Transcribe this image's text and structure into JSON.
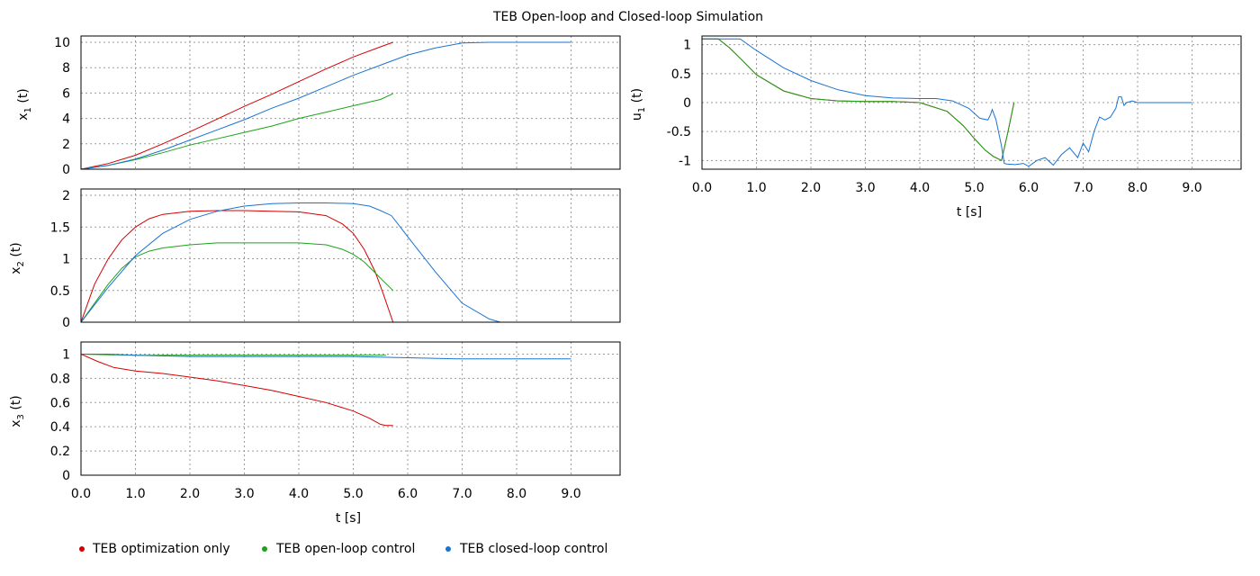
{
  "title": "TEB Open-loop and Closed-loop Simulation",
  "colors": {
    "teb_only": "#d40000",
    "open_loop": "#1aa31a",
    "closed_loop": "#1a73d4",
    "grid": "#9a9a9a"
  },
  "legend": [
    {
      "name": "TEB optimization only",
      "color_key": "teb_only"
    },
    {
      "name": "TEB open-loop control",
      "color_key": "open_loop"
    },
    {
      "name": "TEB closed-loop control",
      "color_key": "closed_loop"
    }
  ],
  "chart_data": [
    {
      "id": "x1",
      "type": "line",
      "ylabel": "x1 (t)",
      "ylabel_main": "x",
      "ylabel_sub": "1",
      "ylabel_tail": " (t)",
      "xlim": [
        0,
        9.9
      ],
      "ylim": [
        0,
        10.5
      ],
      "xticks": [
        0,
        1,
        2,
        3,
        4,
        5,
        6,
        7,
        8,
        9
      ],
      "xtick_labels": [
        "0.0",
        "1.0",
        "2.0",
        "3.0",
        "4.0",
        "5.0",
        "6.0",
        "7.0",
        "8.0",
        "9.0"
      ],
      "show_xtick_labels": false,
      "yticks": [
        0,
        2,
        4,
        6,
        8,
        10
      ],
      "ytick_labels": [
        "0",
        "2",
        "4",
        "6",
        "8",
        "10"
      ],
      "grid": true,
      "series": [
        {
          "name": "TEB optimization only",
          "color_key": "teb_only",
          "x": [
            0,
            0.5,
            1.0,
            1.5,
            2.0,
            2.5,
            3.0,
            3.5,
            4.0,
            4.5,
            5.0,
            5.5,
            5.73
          ],
          "y": [
            0,
            0.45,
            1.1,
            2.0,
            2.95,
            3.95,
            4.95,
            5.9,
            6.9,
            7.9,
            8.85,
            9.65,
            10.0
          ]
        },
        {
          "name": "TEB open-loop control",
          "color_key": "open_loop",
          "x": [
            0,
            0.5,
            1.0,
            1.5,
            2.0,
            2.5,
            3.0,
            3.5,
            4.0,
            4.5,
            5.0,
            5.5,
            5.73
          ],
          "y": [
            0,
            0.3,
            0.75,
            1.3,
            1.9,
            2.4,
            2.9,
            3.4,
            4.0,
            4.5,
            5.0,
            5.5,
            5.95
          ]
        },
        {
          "name": "TEB closed-loop control",
          "color_key": "closed_loop",
          "x": [
            0,
            0.5,
            1.0,
            1.5,
            2.0,
            2.5,
            3.0,
            3.5,
            4.0,
            4.5,
            5.0,
            5.5,
            6.0,
            6.5,
            7.0,
            7.5,
            8.0,
            8.5,
            9.0
          ],
          "y": [
            0,
            0.3,
            0.8,
            1.5,
            2.3,
            3.1,
            3.9,
            4.8,
            5.6,
            6.5,
            7.4,
            8.2,
            9.0,
            9.55,
            9.95,
            10.0,
            10.0,
            10.0,
            10.0
          ]
        }
      ]
    },
    {
      "id": "x2",
      "type": "line",
      "ylabel": "x2 (t)",
      "ylabel_main": "x",
      "ylabel_sub": "2",
      "ylabel_tail": " (t)",
      "xlim": [
        0,
        9.9
      ],
      "ylim": [
        0,
        2.1
      ],
      "xticks": [
        0,
        1,
        2,
        3,
        4,
        5,
        6,
        7,
        8,
        9
      ],
      "xtick_labels": [
        "0.0",
        "1.0",
        "2.0",
        "3.0",
        "4.0",
        "5.0",
        "6.0",
        "7.0",
        "8.0",
        "9.0"
      ],
      "show_xtick_labels": false,
      "yticks": [
        0,
        0.5,
        1,
        1.5,
        2
      ],
      "ytick_labels": [
        "0",
        "0.5",
        "1",
        "1.5",
        "2"
      ],
      "grid": true,
      "series": [
        {
          "name": "TEB optimization only",
          "color_key": "teb_only",
          "x": [
            0,
            0.25,
            0.5,
            0.75,
            1.0,
            1.25,
            1.5,
            2.0,
            2.5,
            3.0,
            3.5,
            4.0,
            4.5,
            4.8,
            5.0,
            5.2,
            5.4,
            5.55,
            5.73
          ],
          "y": [
            0,
            0.6,
            1.0,
            1.3,
            1.5,
            1.63,
            1.7,
            1.75,
            1.76,
            1.76,
            1.75,
            1.74,
            1.68,
            1.55,
            1.4,
            1.15,
            0.8,
            0.45,
            0
          ]
        },
        {
          "name": "TEB open-loop control",
          "color_key": "open_loop",
          "x": [
            0,
            0.25,
            0.5,
            0.75,
            1.0,
            1.25,
            1.5,
            2.0,
            2.5,
            3.0,
            3.5,
            4.0,
            4.5,
            4.8,
            5.0,
            5.2,
            5.4,
            5.55,
            5.73
          ],
          "y": [
            0,
            0.3,
            0.6,
            0.85,
            1.03,
            1.12,
            1.17,
            1.22,
            1.25,
            1.25,
            1.25,
            1.25,
            1.22,
            1.15,
            1.07,
            0.95,
            0.78,
            0.65,
            0.5
          ]
        },
        {
          "name": "TEB closed-loop control",
          "color_key": "closed_loop",
          "x": [
            0,
            0.5,
            1.0,
            1.5,
            2.0,
            2.5,
            3.0,
            3.5,
            4.0,
            4.5,
            5.0,
            5.3,
            5.5,
            5.7,
            6.0,
            6.5,
            7.0,
            7.5,
            7.7,
            8.0
          ],
          "y": [
            0,
            0.55,
            1.05,
            1.4,
            1.62,
            1.75,
            1.83,
            1.87,
            1.88,
            1.88,
            1.87,
            1.83,
            1.76,
            1.68,
            1.35,
            0.8,
            0.3,
            0.05,
            0.0,
            0.0
          ]
        }
      ]
    },
    {
      "id": "x3",
      "type": "line",
      "ylabel": "x3 (t)",
      "ylabel_main": "x",
      "ylabel_sub": "3",
      "ylabel_tail": " (t)",
      "xlim": [
        0,
        9.9
      ],
      "ylim": [
        0,
        1.1
      ],
      "xticks": [
        0,
        1,
        2,
        3,
        4,
        5,
        6,
        7,
        8,
        9
      ],
      "xtick_labels": [
        "0.0",
        "1.0",
        "2.0",
        "3.0",
        "4.0",
        "5.0",
        "6.0",
        "7.0",
        "8.0",
        "9.0"
      ],
      "show_xtick_labels": true,
      "xlabel": "t [s]",
      "yticks": [
        0,
        0.2,
        0.4,
        0.6,
        0.8,
        1
      ],
      "ytick_labels": [
        "0",
        "0.2",
        "0.4",
        "0.6",
        "0.8",
        "1"
      ],
      "grid": true,
      "series": [
        {
          "name": "TEB optimization only",
          "color_key": "teb_only",
          "x": [
            0,
            0.3,
            0.6,
            1.0,
            1.5,
            2.0,
            2.5,
            3.0,
            3.5,
            4.0,
            4.5,
            5.0,
            5.3,
            5.5,
            5.6,
            5.73
          ],
          "y": [
            1.0,
            0.94,
            0.89,
            0.86,
            0.84,
            0.81,
            0.78,
            0.74,
            0.7,
            0.65,
            0.6,
            0.53,
            0.47,
            0.42,
            0.41,
            0.41
          ]
        },
        {
          "name": "TEB open-loop control",
          "color_key": "open_loop",
          "x": [
            0,
            1.0,
            2.0,
            3.0,
            4.0,
            5.0,
            5.6
          ],
          "y": [
            1.0,
            0.99,
            0.99,
            0.99,
            0.99,
            0.99,
            0.99
          ]
        },
        {
          "name": "TEB closed-loop control",
          "color_key": "closed_loop",
          "x": [
            0,
            0.5,
            1.0,
            2.0,
            3.0,
            4.0,
            5.0,
            6.0,
            7.0,
            8.0,
            9.0
          ],
          "y": [
            1.0,
            1.0,
            0.99,
            0.98,
            0.98,
            0.98,
            0.98,
            0.97,
            0.96,
            0.96,
            0.96
          ]
        }
      ]
    },
    {
      "id": "u1",
      "type": "line",
      "ylabel": "u1 (t)",
      "ylabel_main": "u",
      "ylabel_sub": "1",
      "ylabel_tail": " (t)",
      "xlim": [
        0,
        9.9
      ],
      "ylim": [
        -1.15,
        1.15
      ],
      "xticks": [
        0,
        1,
        2,
        3,
        4,
        5,
        6,
        7,
        8,
        9
      ],
      "xtick_labels": [
        "0.0",
        "1.0",
        "2.0",
        "3.0",
        "4.0",
        "5.0",
        "6.0",
        "7.0",
        "8.0",
        "9.0"
      ],
      "show_xtick_labels": true,
      "xlabel": "t [s]",
      "yticks": [
        -1,
        -0.5,
        0,
        0.5,
        1
      ],
      "ytick_labels": [
        "-1",
        "-0.5",
        "0",
        "0.5",
        "1"
      ],
      "grid": true,
      "series": [
        {
          "name": "TEB optimization only",
          "color_key": "teb_only",
          "x": [
            0,
            0.3,
            0.5,
            0.75,
            1.0,
            1.5,
            2.0,
            2.5,
            3.0,
            3.5,
            4.0,
            4.5,
            4.8,
            5.0,
            5.2,
            5.35,
            5.5,
            5.62,
            5.73
          ],
          "y": [
            1.1,
            1.1,
            0.95,
            0.72,
            0.48,
            0.2,
            0.07,
            0.03,
            0.02,
            0.02,
            0.0,
            -0.15,
            -0.4,
            -0.62,
            -0.82,
            -0.93,
            -1.0,
            -0.5,
            0.0
          ]
        },
        {
          "name": "TEB open-loop control",
          "color_key": "open_loop",
          "x": [
            0,
            0.3,
            0.5,
            0.75,
            1.0,
            1.5,
            2.0,
            2.5,
            3.0,
            3.5,
            4.0,
            4.5,
            4.8,
            5.0,
            5.2,
            5.35,
            5.5,
            5.62,
            5.73
          ],
          "y": [
            1.1,
            1.1,
            0.95,
            0.72,
            0.48,
            0.2,
            0.07,
            0.03,
            0.02,
            0.02,
            0.0,
            -0.15,
            -0.4,
            -0.62,
            -0.82,
            -0.93,
            -1.0,
            -0.5,
            0.0
          ]
        },
        {
          "name": "TEB closed-loop control",
          "color_key": "closed_loop",
          "x": [
            0,
            0.7,
            1.0,
            1.5,
            2.0,
            2.5,
            3.0,
            3.5,
            4.0,
            4.3,
            4.6,
            4.9,
            5.1,
            5.25,
            5.3,
            5.33,
            5.4,
            5.5,
            5.55,
            5.6,
            5.75,
            5.9,
            6.0,
            6.15,
            6.3,
            6.45,
            6.6,
            6.75,
            6.9,
            7.0,
            7.1,
            7.2,
            7.3,
            7.4,
            7.5,
            7.6,
            7.65,
            7.7,
            7.75,
            7.8,
            7.9,
            8.0,
            8.2,
            8.5,
            9.0
          ],
          "y": [
            1.1,
            1.1,
            0.9,
            0.6,
            0.38,
            0.22,
            0.12,
            0.08,
            0.07,
            0.07,
            0.03,
            -0.1,
            -0.27,
            -0.3,
            -0.2,
            -0.12,
            -0.3,
            -0.75,
            -1.05,
            -1.06,
            -1.07,
            -1.05,
            -1.1,
            -1.0,
            -0.95,
            -1.08,
            -0.9,
            -0.78,
            -0.95,
            -0.7,
            -0.85,
            -0.5,
            -0.25,
            -0.3,
            -0.25,
            -0.1,
            0.1,
            0.1,
            -0.05,
            0.0,
            0.03,
            0.0,
            0.0,
            0.0,
            0.0
          ]
        }
      ]
    }
  ]
}
